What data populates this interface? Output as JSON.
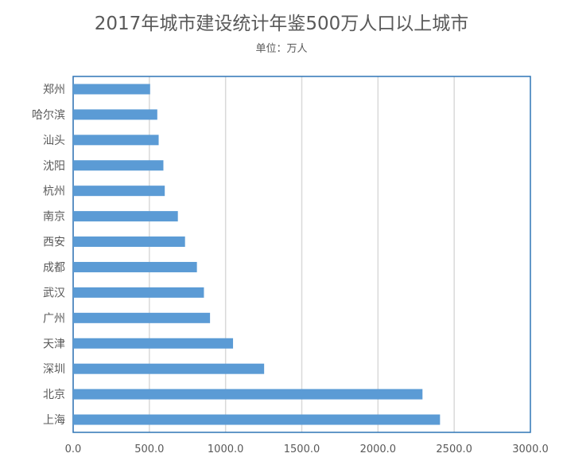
{
  "chart_data": {
    "type": "bar",
    "orientation": "horizontal",
    "title": "2017年城市建设统计年鉴500万人口以上城市",
    "subtitle": "单位：万人",
    "categories": [
      "郑州",
      "哈尔滨",
      "汕头",
      "沈阳",
      "杭州",
      "南京",
      "西安",
      "成都",
      "武汉",
      "广州",
      "天津",
      "深圳",
      "北京",
      "上海"
    ],
    "values": [
      505,
      552,
      561,
      592,
      601,
      687,
      734,
      812,
      858,
      898,
      1049,
      1253,
      2292,
      2407
    ],
    "xlim": [
      0,
      3000
    ],
    "xticks": [
      "0.0",
      "500.0",
      "1000.0",
      "1500.0",
      "2000.0",
      "2500.0",
      "3000.0"
    ],
    "grid": true,
    "colors": {
      "bar": "#5b9bd5",
      "grid": "#d9d9d9",
      "frame": "#2e75b6"
    }
  }
}
